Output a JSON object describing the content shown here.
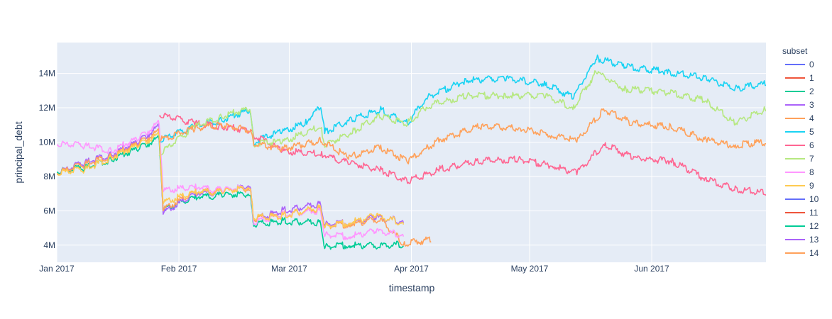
{
  "chart_data": {
    "type": "line",
    "xlabel": "timestamp",
    "ylabel": "principal_debt",
    "x_tick_labels": [
      "Jan 2017",
      "Feb 2017",
      "Mar 2017",
      "Apr 2017",
      "May 2017",
      "Jun 2017"
    ],
    "x_tick_dates": [
      "2017-01-01",
      "2017-02-01",
      "2017-03-01",
      "2017-04-01",
      "2017-05-01",
      "2017-06-01"
    ],
    "y_tick_labels": [
      "4M",
      "6M",
      "8M",
      "10M",
      "12M",
      "14M"
    ],
    "y_tick_values": [
      4000000,
      6000000,
      8000000,
      10000000,
      12000000,
      14000000
    ],
    "xlim": [
      "2017-01-01",
      "2017-06-30"
    ],
    "ylim": [
      3000000,
      15800000
    ],
    "grid": true,
    "legend": {
      "title": "subset",
      "placement": "right"
    },
    "series": [
      {
        "name": "0",
        "color": "#636efa",
        "x": [],
        "y": []
      },
      {
        "name": "1",
        "color": "#EF553B",
        "x": [],
        "y": []
      },
      {
        "name": "2",
        "color": "#00cc96",
        "x": [
          "2017-01-01",
          "2017-01-08",
          "2017-01-15",
          "2017-01-22",
          "2017-01-27",
          "2017-01-28",
          "2017-02-05",
          "2017-02-12",
          "2017-02-19",
          "2017-02-20",
          "2017-02-27",
          "2017-03-09",
          "2017-03-10",
          "2017-03-16",
          "2017-03-24",
          "2017-03-30"
        ],
        "y": [
          8200000,
          8400000,
          8900000,
          9600000,
          10100000,
          6000000,
          6700000,
          6800000,
          6900000,
          5100000,
          5300000,
          5200000,
          3800000,
          3900000,
          3850000,
          3950000
        ]
      },
      {
        "name": "3",
        "color": "#ab63fa",
        "x": [
          "2017-01-01",
          "2017-01-08",
          "2017-01-15",
          "2017-01-22",
          "2017-01-27",
          "2017-01-28",
          "2017-02-05",
          "2017-02-12",
          "2017-02-19",
          "2017-02-20",
          "2017-02-27",
          "2017-03-09",
          "2017-03-10",
          "2017-03-16",
          "2017-03-23",
          "2017-03-30"
        ],
        "y": [
          8100000,
          8700000,
          9200000,
          10000000,
          10800000,
          5800000,
          6900000,
          7000000,
          7400000,
          5400000,
          5900000,
          6300000,
          5100000,
          5200000,
          5500000,
          5300000
        ]
      },
      {
        "name": "4",
        "color": "#FFA15A",
        "x": [
          "2017-01-01",
          "2017-01-08",
          "2017-01-15",
          "2017-01-22",
          "2017-01-27",
          "2017-01-28",
          "2017-02-05",
          "2017-02-12",
          "2017-02-19",
          "2017-02-20",
          "2017-02-27",
          "2017-03-09",
          "2017-03-10",
          "2017-03-16",
          "2017-03-24",
          "2017-03-30",
          "2017-04-06"
        ],
        "y": [
          8100000,
          8600000,
          9100000,
          9900000,
          10500000,
          6000000,
          7000000,
          7100000,
          7200000,
          5400000,
          5700000,
          6000000,
          5000000,
          5100000,
          5400000,
          4000000,
          4200000
        ]
      },
      {
        "name": "5",
        "color": "#19d3f3",
        "x": [
          "2017-01-27",
          "2017-02-05",
          "2017-02-12",
          "2017-02-19",
          "2017-02-20",
          "2017-02-27",
          "2017-03-05",
          "2017-03-09",
          "2017-03-10",
          "2017-03-17",
          "2017-03-24",
          "2017-03-31",
          "2017-04-05",
          "2017-04-15",
          "2017-04-25",
          "2017-05-05",
          "2017-05-12",
          "2017-05-18",
          "2017-05-25",
          "2017-06-05",
          "2017-06-15",
          "2017-06-22",
          "2017-06-30"
        ],
        "y": [
          10000000,
          10800000,
          11200000,
          11800000,
          9900000,
          10500000,
          11000000,
          12000000,
          10500000,
          11200000,
          11800000,
          11000000,
          12500000,
          13500000,
          13600000,
          13300000,
          12500000,
          14800000,
          14300000,
          14000000,
          13600000,
          13000000,
          13300000
        ]
      },
      {
        "name": "6",
        "color": "#FF6692",
        "x": [
          "2017-01-27",
          "2017-02-05",
          "2017-02-12",
          "2017-02-19",
          "2017-02-20",
          "2017-02-27",
          "2017-03-09",
          "2017-03-16",
          "2017-03-24",
          "2017-03-31",
          "2017-04-08",
          "2017-04-18",
          "2017-04-28",
          "2017-05-07",
          "2017-05-13",
          "2017-05-20",
          "2017-05-27",
          "2017-06-06",
          "2017-06-15",
          "2017-06-22",
          "2017-06-30"
        ],
        "y": [
          11500000,
          11000000,
          10800000,
          10600000,
          10300000,
          9400000,
          9200000,
          8700000,
          8300000,
          7600000,
          8300000,
          8800000,
          8900000,
          8500000,
          8100000,
          9800000,
          9000000,
          8800000,
          7700000,
          7200000,
          6900000
        ]
      },
      {
        "name": "7",
        "color": "#B6E880",
        "x": [
          "2017-01-27",
          "2017-02-05",
          "2017-02-12",
          "2017-02-19",
          "2017-02-20",
          "2017-02-27",
          "2017-03-09",
          "2017-03-10",
          "2017-03-17",
          "2017-03-24",
          "2017-03-31",
          "2017-04-05",
          "2017-04-15",
          "2017-04-25",
          "2017-05-05",
          "2017-05-12",
          "2017-05-18",
          "2017-05-25",
          "2017-06-05",
          "2017-06-15",
          "2017-06-22",
          "2017-06-30"
        ],
        "y": [
          9200000,
          10800000,
          11400000,
          11900000,
          9800000,
          9900000,
          10800000,
          9700000,
          10500000,
          11400000,
          11000000,
          12000000,
          12600000,
          12600000,
          12600000,
          11900000,
          14000000,
          13000000,
          12800000,
          12300000,
          11000000,
          11800000
        ]
      },
      {
        "name": "8",
        "color": "#FF97FF",
        "x": [
          "2017-01-01",
          "2017-01-08",
          "2017-01-15",
          "2017-01-22",
          "2017-01-27",
          "2017-01-28",
          "2017-02-05",
          "2017-02-12",
          "2017-02-19",
          "2017-02-20",
          "2017-02-27",
          "2017-03-09",
          "2017-03-10",
          "2017-03-16",
          "2017-03-23",
          "2017-03-30"
        ],
        "y": [
          9800000,
          9700000,
          9400000,
          10200000,
          11000000,
          7100000,
          7300000,
          7100000,
          7300000,
          5200000,
          5700000,
          5900000,
          4500000,
          4400000,
          4700000,
          4500000
        ]
      },
      {
        "name": "9",
        "color": "#FECB52",
        "x": [
          "2017-01-01",
          "2017-01-08",
          "2017-01-15",
          "2017-01-22",
          "2017-01-27",
          "2017-01-28",
          "2017-02-05",
          "2017-02-12",
          "2017-02-19",
          "2017-02-20",
          "2017-02-27",
          "2017-03-09",
          "2017-03-10",
          "2017-03-16",
          "2017-03-23",
          "2017-03-30"
        ],
        "y": [
          8100000,
          8300000,
          9000000,
          9800000,
          10300000,
          6400000,
          7000000,
          7000000,
          7300000,
          5500000,
          5600000,
          6100000,
          5000000,
          5200000,
          5600000,
          5200000
        ]
      },
      {
        "name": "10",
        "color": "#636efa",
        "x": [],
        "y": []
      },
      {
        "name": "11",
        "color": "#EF553B",
        "x": [],
        "y": []
      },
      {
        "name": "12",
        "color": "#00cc96",
        "x": [],
        "y": []
      },
      {
        "name": "13",
        "color": "#ab63fa",
        "x": [],
        "y": []
      },
      {
        "name": "14",
        "color": "#FFA15A",
        "x": [
          "2017-01-27",
          "2017-02-05",
          "2017-02-12",
          "2017-02-19",
          "2017-02-20",
          "2017-02-27",
          "2017-03-09",
          "2017-03-16",
          "2017-03-24",
          "2017-03-31",
          "2017-04-08",
          "2017-04-18",
          "2017-04-28",
          "2017-05-07",
          "2017-05-13",
          "2017-05-20",
          "2017-05-27",
          "2017-06-06",
          "2017-06-15",
          "2017-06-22",
          "2017-06-30"
        ],
        "y": [
          10000000,
          10700000,
          10900000,
          10600000,
          9800000,
          9500000,
          10000000,
          9000000,
          9600000,
          8800000,
          10000000,
          10800000,
          10700000,
          10300000,
          10000000,
          11800000,
          11000000,
          10800000,
          10000000,
          9700000,
          9900000
        ]
      }
    ]
  }
}
